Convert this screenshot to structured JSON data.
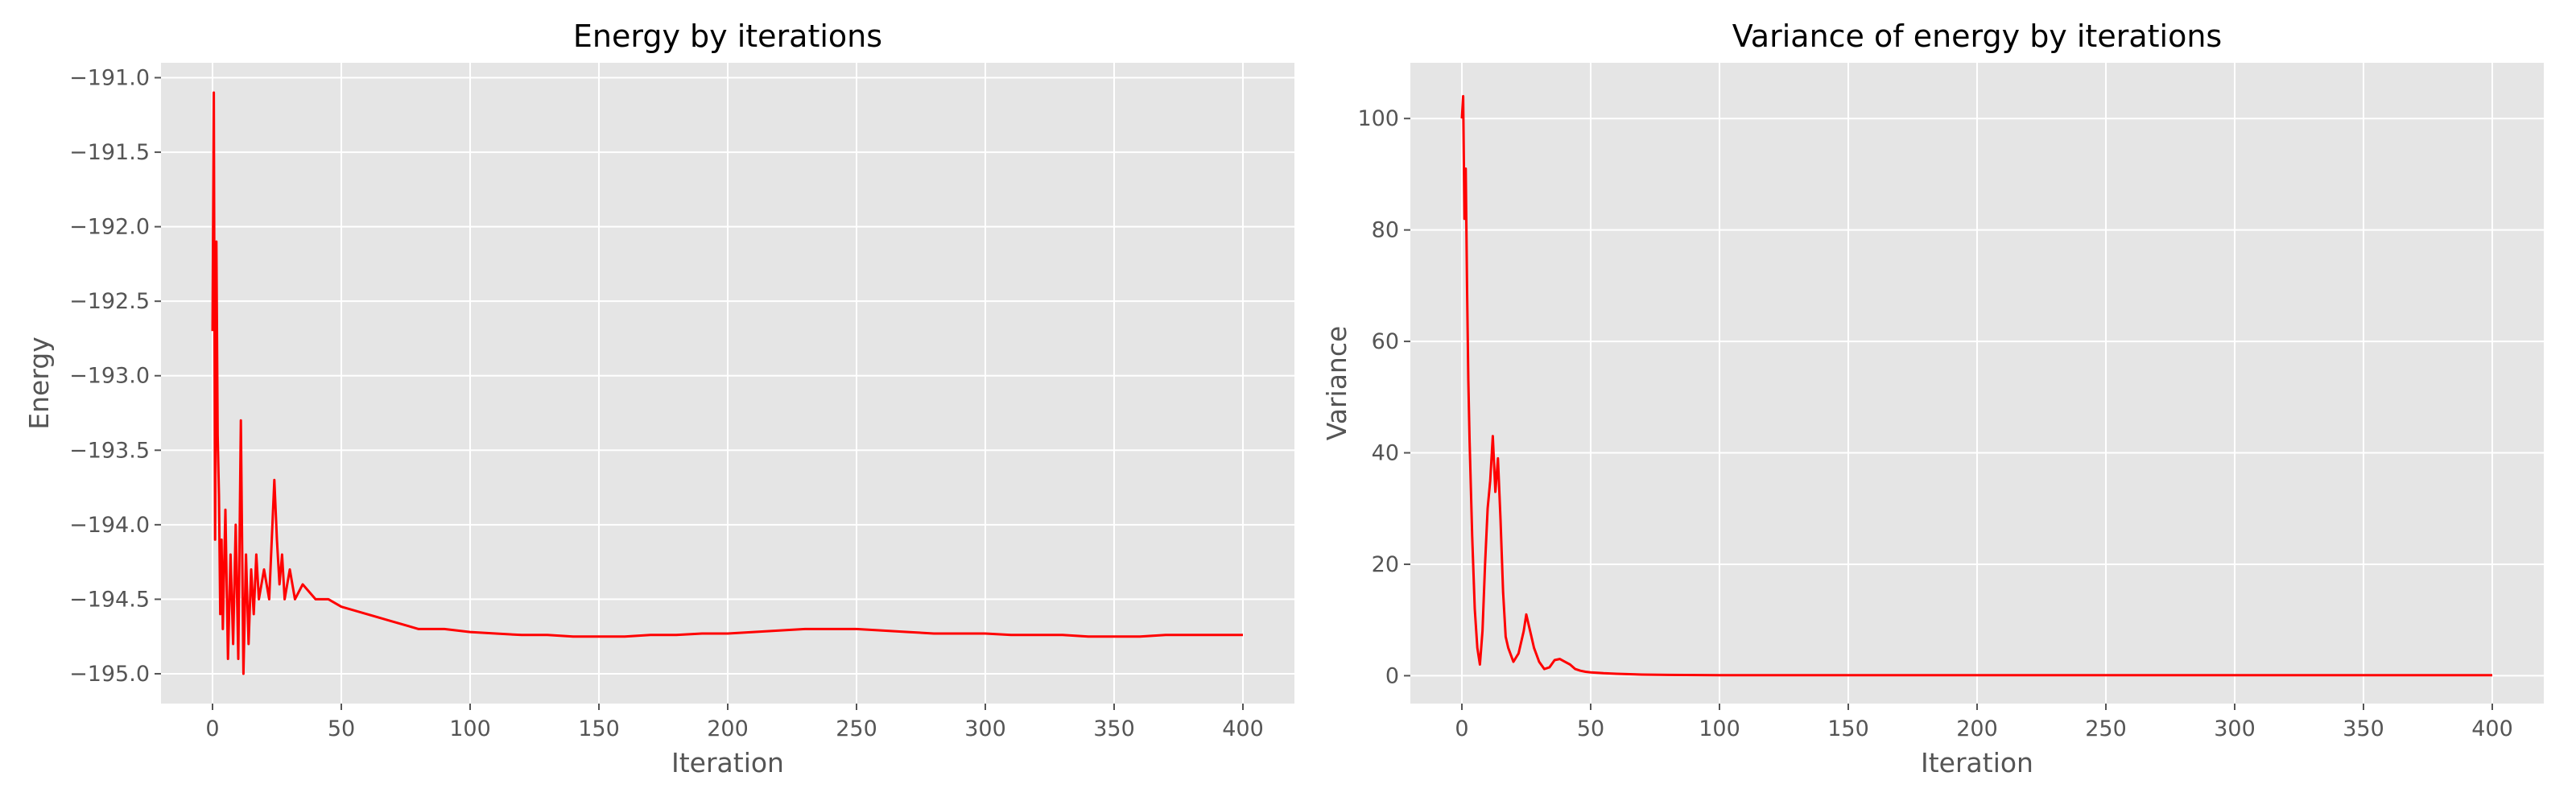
{
  "colors": {
    "background": "#ffffff",
    "plot_face": "#e5e5e5",
    "grid": "#ffffff",
    "line": "#ff0000",
    "tick_text": "#555555",
    "title_text": "#000000"
  },
  "chart_data": [
    {
      "type": "line",
      "title": "Energy by iterations",
      "xlabel": "Iteration",
      "ylabel": "Energy",
      "xlim": [
        -20,
        420
      ],
      "ylim": [
        -195.2,
        -190.9
      ],
      "xticks": [
        0,
        50,
        100,
        150,
        200,
        250,
        300,
        350,
        400
      ],
      "yticks": [
        -191.0,
        -191.5,
        -192.0,
        -192.5,
        -193.0,
        -193.5,
        -194.0,
        -194.5,
        -195.0
      ],
      "xtick_labels": [
        "0",
        "50",
        "100",
        "150",
        "200",
        "250",
        "300",
        "350",
        "400"
      ],
      "ytick_labels": [
        "−191.0",
        "−191.5",
        "−192.0",
        "−192.5",
        "−193.0",
        "−193.5",
        "−194.0",
        "−194.5",
        "−195.0"
      ],
      "grid": true,
      "legend": "none",
      "series": [
        {
          "x": [
            0,
            0.5,
            1,
            1.5,
            2,
            2.5,
            3,
            3.5,
            4,
            5,
            6,
            7,
            8,
            9,
            10,
            11,
            12,
            13,
            14,
            15,
            16,
            17,
            18,
            20,
            22,
            24,
            25,
            26,
            27,
            28,
            30,
            32,
            35,
            40,
            45,
            50,
            60,
            70,
            80,
            90,
            100,
            110,
            120,
            130,
            140,
            150,
            160,
            170,
            180,
            190,
            200,
            210,
            220,
            230,
            240,
            250,
            260,
            270,
            280,
            290,
            300,
            310,
            320,
            330,
            340,
            350,
            360,
            370,
            380,
            390,
            400
          ],
          "y": [
            -192.7,
            -191.1,
            -194.1,
            -192.1,
            -193.4,
            -193.8,
            -194.6,
            -194.1,
            -194.7,
            -193.9,
            -194.9,
            -194.2,
            -194.8,
            -194.0,
            -194.9,
            -193.3,
            -195.0,
            -194.2,
            -194.8,
            -194.3,
            -194.6,
            -194.2,
            -194.5,
            -194.3,
            -194.5,
            -193.7,
            -194.1,
            -194.4,
            -194.2,
            -194.5,
            -194.3,
            -194.5,
            -194.4,
            -194.5,
            -194.5,
            -194.55,
            -194.6,
            -194.65,
            -194.7,
            -194.7,
            -194.72,
            -194.73,
            -194.74,
            -194.74,
            -194.75,
            -194.75,
            -194.75,
            -194.74,
            -194.74,
            -194.73,
            -194.73,
            -194.72,
            -194.71,
            -194.7,
            -194.7,
            -194.7,
            -194.71,
            -194.72,
            -194.73,
            -194.73,
            -194.73,
            -194.74,
            -194.74,
            -194.74,
            -194.75,
            -194.75,
            -194.75,
            -194.74,
            -194.74,
            -194.74,
            -194.74
          ]
        }
      ]
    },
    {
      "type": "line",
      "title": "Variance of energy by iterations",
      "xlabel": "Iteration",
      "ylabel": "Variance",
      "xlim": [
        -20,
        420
      ],
      "ylim": [
        -5,
        110
      ],
      "xticks": [
        0,
        50,
        100,
        150,
        200,
        250,
        300,
        350,
        400
      ],
      "yticks": [
        0,
        20,
        40,
        60,
        80,
        100
      ],
      "xtick_labels": [
        "0",
        "50",
        "100",
        "150",
        "200",
        "250",
        "300",
        "350",
        "400"
      ],
      "ytick_labels": [
        "0",
        "20",
        "40",
        "60",
        "80",
        "100"
      ],
      "grid": true,
      "legend": "none",
      "series": [
        {
          "x": [
            0,
            0.5,
            1,
            1.5,
            2,
            2.5,
            3,
            4,
            5,
            6,
            7,
            8,
            9,
            10,
            11,
            12,
            12.5,
            13,
            14,
            15,
            16,
            17,
            18,
            20,
            22,
            24,
            25,
            26,
            27,
            28,
            30,
            32,
            34,
            36,
            38,
            40,
            42,
            44,
            46,
            48,
            50,
            55,
            60,
            70,
            80,
            100,
            150,
            200,
            250,
            300,
            350,
            400
          ],
          "y": [
            100,
            104,
            82,
            91,
            70,
            53,
            42,
            25,
            12,
            5,
            2,
            8,
            20,
            30,
            35,
            43,
            38,
            33,
            39,
            28,
            15,
            7,
            5,
            2.5,
            4,
            8,
            11,
            9,
            7,
            5,
            2.5,
            1.2,
            1.5,
            2.8,
            3,
            2.5,
            2,
            1.2,
            0.9,
            0.7,
            0.6,
            0.45,
            0.35,
            0.2,
            0.15,
            0.1,
            0.1,
            0.1,
            0.1,
            0.1,
            0.1,
            0.1
          ]
        }
      ]
    }
  ]
}
